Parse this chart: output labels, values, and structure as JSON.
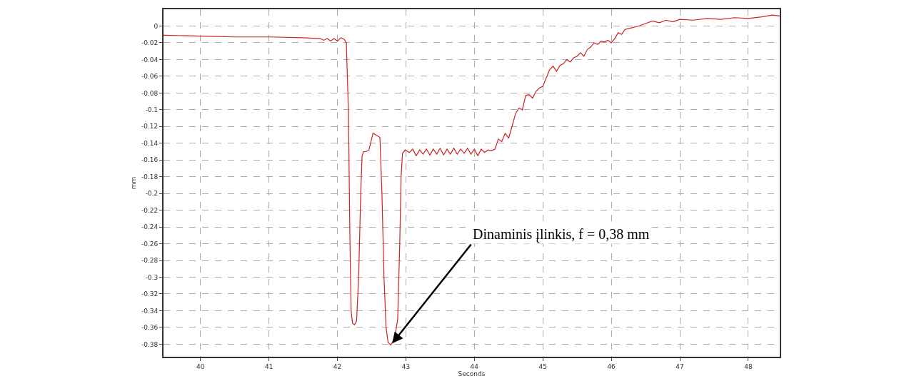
{
  "chart_data": {
    "type": "line",
    "xlabel": "Seconds",
    "ylabel": "mm",
    "xlim": [
      39.46,
      48.46
    ],
    "xticks": [
      40,
      41,
      42,
      43,
      44,
      45,
      46,
      47,
      48
    ],
    "ylim": [
      -0.395,
      0.02
    ],
    "yticks": [
      0,
      -0.02,
      -0.04,
      -0.06,
      -0.08,
      -0.1,
      -0.12,
      -0.14,
      -0.16,
      -0.18,
      -0.2,
      -0.22,
      -0.24,
      -0.26,
      -0.28,
      -0.3,
      -0.32,
      -0.34,
      -0.36,
      -0.38
    ],
    "grid": true,
    "line_style": "solid",
    "series": [
      {
        "color": "#cc2222",
        "x": [
          39.46,
          40,
          40.5,
          41,
          41.5,
          41.75,
          41.8,
          41.85,
          41.9,
          41.95,
          42.0,
          42.05,
          42.1,
          42.13,
          42.16,
          42.18,
          42.2,
          42.22,
          42.25,
          42.28,
          42.31,
          42.34,
          42.36,
          42.38,
          42.42,
          42.46,
          42.49,
          42.52,
          42.56,
          42.62,
          42.65,
          42.68,
          42.71,
          42.74,
          42.78,
          42.82,
          42.85,
          42.88,
          42.91,
          42.93,
          42.95,
          42.99,
          43.05,
          43.1,
          43.15,
          43.2,
          43.25,
          43.3,
          43.35,
          43.4,
          43.45,
          43.5,
          43.55,
          43.6,
          43.65,
          43.7,
          43.75,
          43.8,
          43.85,
          43.9,
          43.95,
          44.0,
          44.05,
          44.1,
          44.15,
          44.2,
          44.25,
          44.3,
          44.35,
          44.4,
          44.45,
          44.5,
          44.55,
          44.6,
          44.65,
          44.7,
          44.75,
          44.8,
          44.85,
          44.9,
          44.95,
          45.0,
          45.05,
          45.1,
          45.15,
          45.2,
          45.25,
          45.3,
          45.35,
          45.4,
          45.45,
          45.5,
          45.55,
          45.6,
          45.65,
          45.7,
          45.75,
          45.8,
          45.85,
          45.9,
          45.95,
          46.0,
          46.05,
          46.1,
          46.15,
          46.2,
          46.3,
          46.4,
          46.5,
          46.6,
          46.7,
          46.8,
          46.9,
          47.0,
          47.2,
          47.4,
          47.6,
          47.8,
          48.0,
          48.2,
          48.35,
          48.46
        ],
        "values": [
          -0.011,
          -0.012,
          -0.013,
          -0.013,
          -0.014,
          -0.015,
          -0.017,
          -0.015,
          -0.018,
          -0.015,
          -0.018,
          -0.014,
          -0.016,
          -0.02,
          -0.1,
          -0.24,
          -0.34,
          -0.355,
          -0.357,
          -0.352,
          -0.3,
          -0.2,
          -0.155,
          -0.15,
          -0.15,
          -0.148,
          -0.138,
          -0.128,
          -0.13,
          -0.133,
          -0.2,
          -0.3,
          -0.36,
          -0.378,
          -0.381,
          -0.375,
          -0.366,
          -0.35,
          -0.26,
          -0.18,
          -0.152,
          -0.148,
          -0.151,
          -0.147,
          -0.155,
          -0.148,
          -0.153,
          -0.147,
          -0.154,
          -0.147,
          -0.153,
          -0.146,
          -0.154,
          -0.147,
          -0.153,
          -0.146,
          -0.153,
          -0.147,
          -0.152,
          -0.146,
          -0.153,
          -0.147,
          -0.155,
          -0.147,
          -0.151,
          -0.148,
          -0.149,
          -0.147,
          -0.135,
          -0.138,
          -0.128,
          -0.134,
          -0.12,
          -0.105,
          -0.098,
          -0.1,
          -0.083,
          -0.082,
          -0.086,
          -0.078,
          -0.074,
          -0.072,
          -0.062,
          -0.052,
          -0.048,
          -0.054,
          -0.047,
          -0.045,
          -0.04,
          -0.043,
          -0.038,
          -0.036,
          -0.032,
          -0.036,
          -0.028,
          -0.025,
          -0.02,
          -0.022,
          -0.018,
          -0.019,
          -0.017,
          -0.02,
          -0.015,
          -0.008,
          -0.01,
          -0.004,
          -0.002,
          0.0,
          0.003,
          0.006,
          0.004,
          0.007,
          0.005,
          0.008,
          0.007,
          0.009,
          0.008,
          0.01,
          0.009,
          0.011,
          0.013,
          0.012
        ]
      }
    ],
    "annotations": [
      {
        "text": "Dinaminis įlinkis, f = 0,38 mm",
        "x": 42.8,
        "y": -0.379
      }
    ]
  }
}
